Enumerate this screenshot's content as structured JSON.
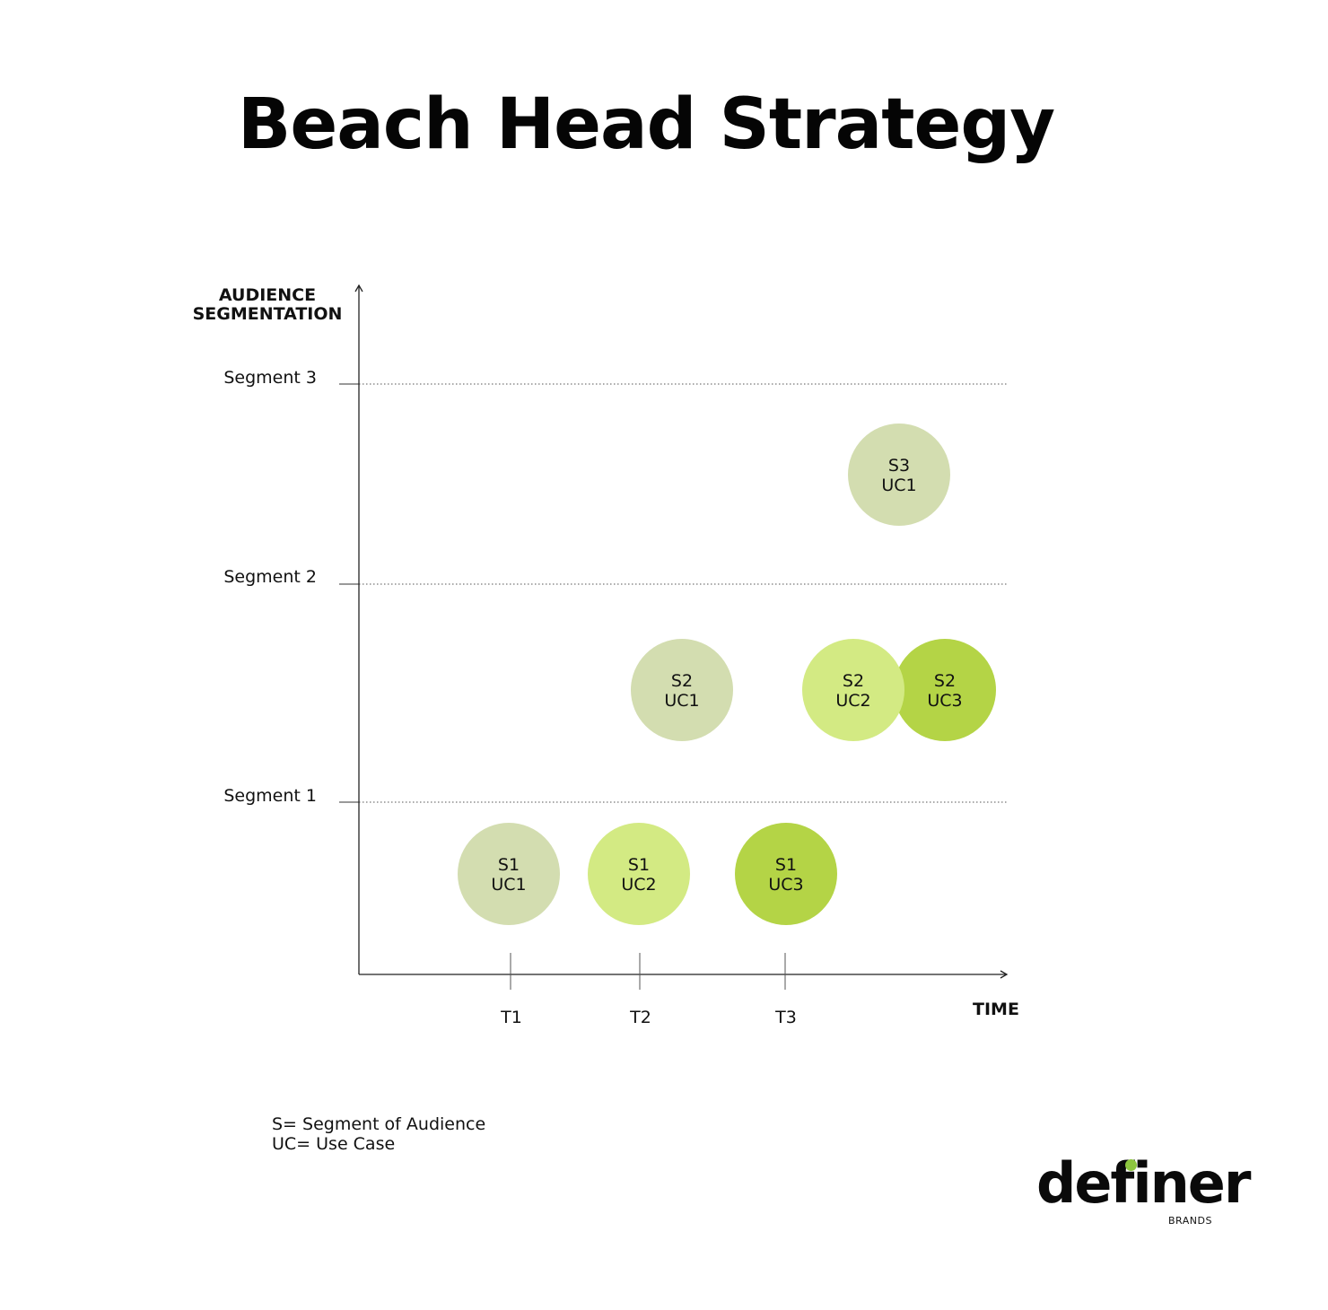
{
  "title": "Beach Head Strategy",
  "y_axis_label": [
    "AUDIENCE",
    "SEGMENTATION"
  ],
  "x_axis_label": "TIME",
  "segments": [
    {
      "label": "Segment 3",
      "level": 3
    },
    {
      "label": "Segment 2",
      "level": 2
    },
    {
      "label": "Segment 1",
      "level": 1
    }
  ],
  "time_ticks": [
    "T1",
    "T2",
    "T3"
  ],
  "nodes": [
    {
      "line1": "S1",
      "line2": "UC1",
      "segment": 1,
      "time": 1,
      "color": "#d3ddb0"
    },
    {
      "line1": "S1",
      "line2": "UC2",
      "segment": 1,
      "time": 2,
      "color": "#d3ea83"
    },
    {
      "line1": "S1",
      "line2": "UC3",
      "segment": 1,
      "time": 3,
      "color": "#b4d446"
    },
    {
      "line1": "S2",
      "line2": "UC1",
      "segment": 2,
      "time": 2.3,
      "color": "#d3ddb0"
    },
    {
      "line1": "S2",
      "line2": "UC3",
      "segment": 2,
      "time": 4.1,
      "color": "#b4d446"
    },
    {
      "line1": "S2",
      "line2": "UC2",
      "segment": 2,
      "time": 3.5,
      "color": "#d3ea83"
    },
    {
      "line1": "S3",
      "line2": "UC1",
      "segment": 3,
      "time": 3.8,
      "color": "#d3ddb0"
    }
  ],
  "legend": [
    "S= Segment of Audience",
    "UC= Use Case"
  ],
  "logo": {
    "word": "definer",
    "sub": "BRANDS",
    "accent": "#8dc63f"
  }
}
